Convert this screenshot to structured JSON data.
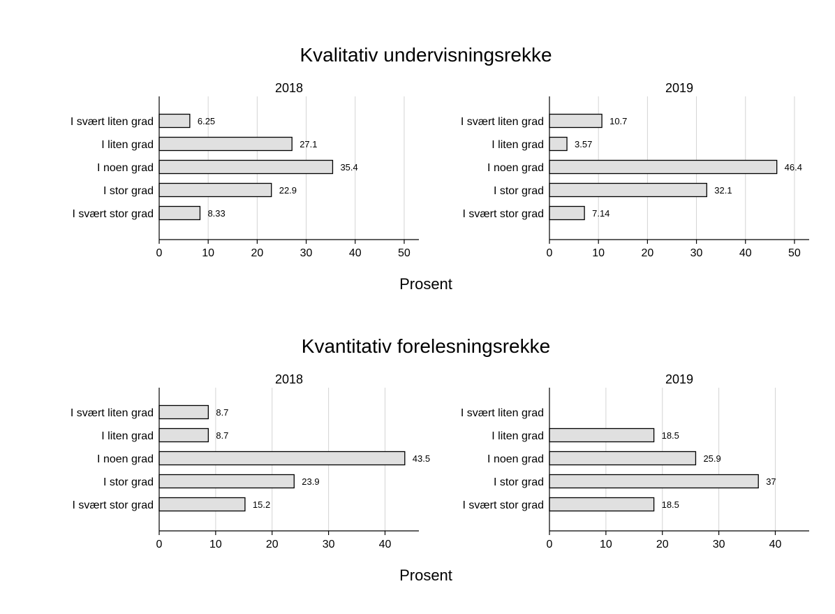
{
  "chart_data": [
    {
      "type": "bar",
      "orientation": "horizontal",
      "group_title": "Kvalitativ undervisningsrekke",
      "title": "2018",
      "categories": [
        "I svært liten grad",
        "I liten grad",
        "I noen grad",
        "I stor grad",
        "I svært stor grad"
      ],
      "values": [
        6.25,
        27.1,
        35.4,
        22.9,
        8.33
      ],
      "value_labels": [
        "6.25",
        "27.1",
        "35.4",
        "22.9",
        "8.33"
      ],
      "xlim": [
        0,
        53
      ],
      "xticks": [
        0,
        10,
        20,
        30,
        40,
        50
      ],
      "xlabel": "Prosent",
      "grid": true,
      "colors": {
        "bar_fill": "#e0e0e0",
        "bar_edge": "#000000",
        "grid": "#d4d4d4"
      }
    },
    {
      "type": "bar",
      "orientation": "horizontal",
      "group_title": "Kvalitativ undervisningsrekke",
      "title": "2019",
      "categories": [
        "I svært liten grad",
        "I liten grad",
        "I noen grad",
        "I stor grad",
        "I svært stor grad"
      ],
      "values": [
        10.7,
        3.57,
        46.4,
        32.1,
        7.14
      ],
      "value_labels": [
        "10.7",
        "3.57",
        "46.4",
        "32.1",
        "7.14"
      ],
      "xlim": [
        0,
        53
      ],
      "xticks": [
        0,
        10,
        20,
        30,
        40,
        50
      ],
      "xlabel": "Prosent",
      "grid": true,
      "colors": {
        "bar_fill": "#e0e0e0",
        "bar_edge": "#000000",
        "grid": "#d4d4d4"
      }
    },
    {
      "type": "bar",
      "orientation": "horizontal",
      "group_title": "Kvantitativ forelesningsrekke",
      "title": "2018",
      "categories": [
        "I svært liten grad",
        "I liten grad",
        "I noen grad",
        "I stor grad",
        "I svært stor grad"
      ],
      "values": [
        8.7,
        8.7,
        43.5,
        23.9,
        15.2
      ],
      "value_labels": [
        "8.7",
        "8.7",
        "43.5",
        "23.9",
        "15.2"
      ],
      "xlim": [
        0,
        46
      ],
      "xticks": [
        0,
        10,
        20,
        30,
        40
      ],
      "xlabel": "Prosent",
      "grid": true,
      "colors": {
        "bar_fill": "#e0e0e0",
        "bar_edge": "#000000",
        "grid": "#d4d4d4"
      }
    },
    {
      "type": "bar",
      "orientation": "horizontal",
      "group_title": "Kvantitativ forelesningsrekke",
      "title": "2019",
      "categories": [
        "I svært liten grad",
        "I liten grad",
        "I noen grad",
        "I stor grad",
        "I svært stor grad"
      ],
      "values": [
        null,
        18.5,
        25.9,
        37,
        18.5
      ],
      "value_labels": [
        "",
        "18.5",
        "25.9",
        "37",
        "18.5"
      ],
      "xlim": [
        0,
        46
      ],
      "xticks": [
        0,
        10,
        20,
        30,
        40
      ],
      "xlabel": "Prosent",
      "grid": true,
      "colors": {
        "bar_fill": "#e0e0e0",
        "bar_edge": "#000000",
        "grid": "#d4d4d4"
      }
    }
  ],
  "groups": [
    {
      "title": "Kvalitativ undervisningsrekke",
      "xlabel": "Prosent"
    },
    {
      "title": "Kvantitativ forelesningsrekke",
      "xlabel": "Prosent"
    }
  ]
}
